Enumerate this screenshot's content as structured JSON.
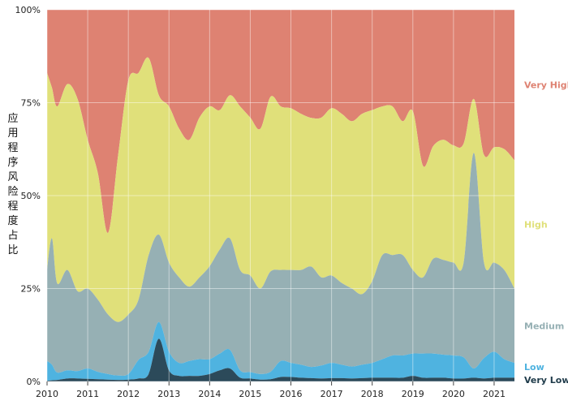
{
  "chart_data": {
    "type": "area",
    "stacked": true,
    "normalized": true,
    "title": "",
    "xlabel": "",
    "ylabel": "应用程序风险程度占比",
    "xlim": [
      2010,
      2021.5
    ],
    "ylim": [
      0,
      100
    ],
    "x_ticks": [
      "2010",
      "2011",
      "2012",
      "2013",
      "2014",
      "2015",
      "2016",
      "2017",
      "2018",
      "2019",
      "2020",
      "2021"
    ],
    "y_ticks": [
      "0%",
      "25%",
      "50%",
      "75%",
      "100%"
    ],
    "grid": true,
    "x": [
      2010,
      2010.12,
      2010.25,
      2010.5,
      2010.75,
      2011,
      2011.25,
      2011.5,
      2011.75,
      2012,
      2012.25,
      2012.5,
      2012.75,
      2013,
      2013.25,
      2013.5,
      2013.75,
      2014,
      2014.25,
      2014.5,
      2014.75,
      2015,
      2015.25,
      2015.5,
      2015.75,
      2016,
      2016.25,
      2016.5,
      2016.75,
      2017,
      2017.25,
      2017.5,
      2017.75,
      2018,
      2018.25,
      2018.5,
      2018.75,
      2019,
      2019.25,
      2019.5,
      2019.75,
      2020,
      2020.25,
      2020.5,
      2020.75,
      2021,
      2021.25,
      2021.5
    ],
    "series": [
      {
        "name": "Very Low",
        "color": "#2c4a5a",
        "values": [
          0.2,
          0.3,
          0.4,
          0.8,
          0.8,
          0.7,
          0.6,
          0.5,
          0.4,
          0.5,
          0.8,
          2,
          11.5,
          3,
          1.5,
          1.5,
          1.5,
          2,
          3,
          3.5,
          1,
          0.8,
          0.5,
          0.6,
          1.2,
          1.2,
          1,
          0.9,
          0.8,
          0.9,
          0.9,
          0.8,
          0.9,
          1,
          1,
          1,
          1,
          1.5,
          1,
          1,
          1,
          0.8,
          0.8,
          1,
          0.8,
          1,
          1,
          1
        ]
      },
      {
        "name": "Low",
        "color": "#4fb3e0",
        "values": [
          5.3,
          4.2,
          2,
          2.2,
          2,
          2.8,
          2,
          1.5,
          1.2,
          1.5,
          5,
          6,
          4.5,
          5,
          3.5,
          4,
          4.5,
          4,
          4.5,
          5,
          2,
          1.7,
          1.5,
          2,
          4.3,
          3.8,
          3.5,
          3,
          3.5,
          4.1,
          3.6,
          3.2,
          3.6,
          4,
          5,
          6,
          6,
          6,
          6.5,
          6.5,
          6.2,
          6.2,
          5.7,
          2.5,
          5.5,
          7,
          5,
          4
        ]
      },
      {
        "name": "Medium",
        "color": "#96b0b4",
        "values": [
          24.5,
          34,
          24,
          27,
          21.5,
          21.5,
          19.4,
          16,
          14.4,
          16,
          16.2,
          26,
          23.5,
          24,
          23,
          20,
          22,
          25,
          28,
          30,
          27,
          26,
          23,
          27,
          24.5,
          25,
          25.5,
          27,
          23.7,
          23.5,
          22,
          21,
          19,
          22,
          28,
          27,
          27,
          22.5,
          20.5,
          25.5,
          25.5,
          25,
          25.5,
          58,
          25.7,
          24,
          24,
          20
        ]
      },
      {
        "name": "High",
        "color": "#e0e07a",
        "values": [
          53,
          40.5,
          47.6,
          50,
          51.7,
          40,
          34,
          22,
          45,
          63,
          61,
          53,
          37.5,
          42,
          40,
          39.5,
          43,
          43,
          37.5,
          38.5,
          44,
          42.5,
          43,
          47,
          44,
          43.5,
          42,
          40,
          43,
          45,
          45.5,
          45,
          48.5,
          46,
          40,
          40,
          36,
          42.7,
          30,
          30.3,
          32.3,
          31.5,
          32,
          14.5,
          29,
          31,
          32.5,
          34.5
        ]
      },
      {
        "name": "Very High",
        "color": "#de8272",
        "values": [
          17,
          21,
          26,
          20,
          24,
          35,
          44,
          60,
          39,
          19,
          17,
          13,
          23,
          26,
          32,
          35,
          29,
          26,
          27,
          23,
          26,
          29,
          32,
          23.4,
          26,
          26.5,
          28,
          29.1,
          29,
          26.5,
          28,
          30,
          28,
          27,
          26,
          26,
          30,
          27.3,
          42,
          36.7,
          35,
          36.5,
          36,
          24,
          39,
          37,
          37.5,
          40.5
        ]
      }
    ]
  }
}
